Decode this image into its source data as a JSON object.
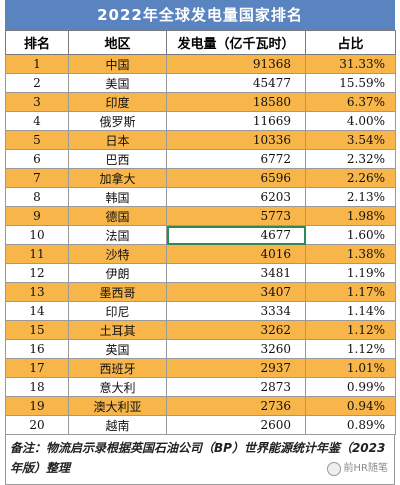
{
  "title": "2022年全球发电量国家排名",
  "headers": [
    "排名",
    "地区",
    "发电量（亿千瓦时）",
    "占比"
  ],
  "rows": [
    {
      "rank": "1",
      "region": "中国",
      "value": "91368",
      "share": "31.33%"
    },
    {
      "rank": "2",
      "region": "美国",
      "value": "45477",
      "share": "15.59%"
    },
    {
      "rank": "3",
      "region": "印度",
      "value": "18580",
      "share": "6.37%"
    },
    {
      "rank": "4",
      "region": "俄罗斯",
      "value": "11669",
      "share": "4.00%"
    },
    {
      "rank": "5",
      "region": "日本",
      "value": "10336",
      "share": "3.54%"
    },
    {
      "rank": "6",
      "region": "巴西",
      "value": "6772",
      "share": "2.32%"
    },
    {
      "rank": "7",
      "region": "加拿大",
      "value": "6596",
      "share": "2.26%"
    },
    {
      "rank": "8",
      "region": "韩国",
      "value": "6203",
      "share": "2.13%"
    },
    {
      "rank": "9",
      "region": "德国",
      "value": "5773",
      "share": "1.98%"
    },
    {
      "rank": "10",
      "region": "法国",
      "value": "4677",
      "share": "1.60%"
    },
    {
      "rank": "11",
      "region": "沙特",
      "value": "4016",
      "share": "1.38%"
    },
    {
      "rank": "12",
      "region": "伊朗",
      "value": "3481",
      "share": "1.19%"
    },
    {
      "rank": "13",
      "region": "墨西哥",
      "value": "3407",
      "share": "1.17%"
    },
    {
      "rank": "14",
      "region": "印尼",
      "value": "3334",
      "share": "1.14%"
    },
    {
      "rank": "15",
      "region": "土耳其",
      "value": "3262",
      "share": "1.12%"
    },
    {
      "rank": "16",
      "region": "英国",
      "value": "3260",
      "share": "1.12%"
    },
    {
      "rank": "17",
      "region": "西班牙",
      "value": "2937",
      "share": "1.01%"
    },
    {
      "rank": "18",
      "region": "意大利",
      "value": "2873",
      "share": "0.99%"
    },
    {
      "rank": "19",
      "region": "澳大利亚",
      "value": "2736",
      "share": "0.94%"
    },
    {
      "rank": "20",
      "region": "越南",
      "value": "2600",
      "share": "0.89%"
    }
  ],
  "selected_cell": {
    "row": 10,
    "column": "value"
  },
  "note": "备注：物流启示录根据英国石油公司（BP）世界能源统计年鉴（2023年版）整理",
  "watermark": "前HR随笔",
  "colors": {
    "title_bg": "#5a84bf",
    "stripe": "#f7b54a",
    "selection": "#2e8b57"
  }
}
